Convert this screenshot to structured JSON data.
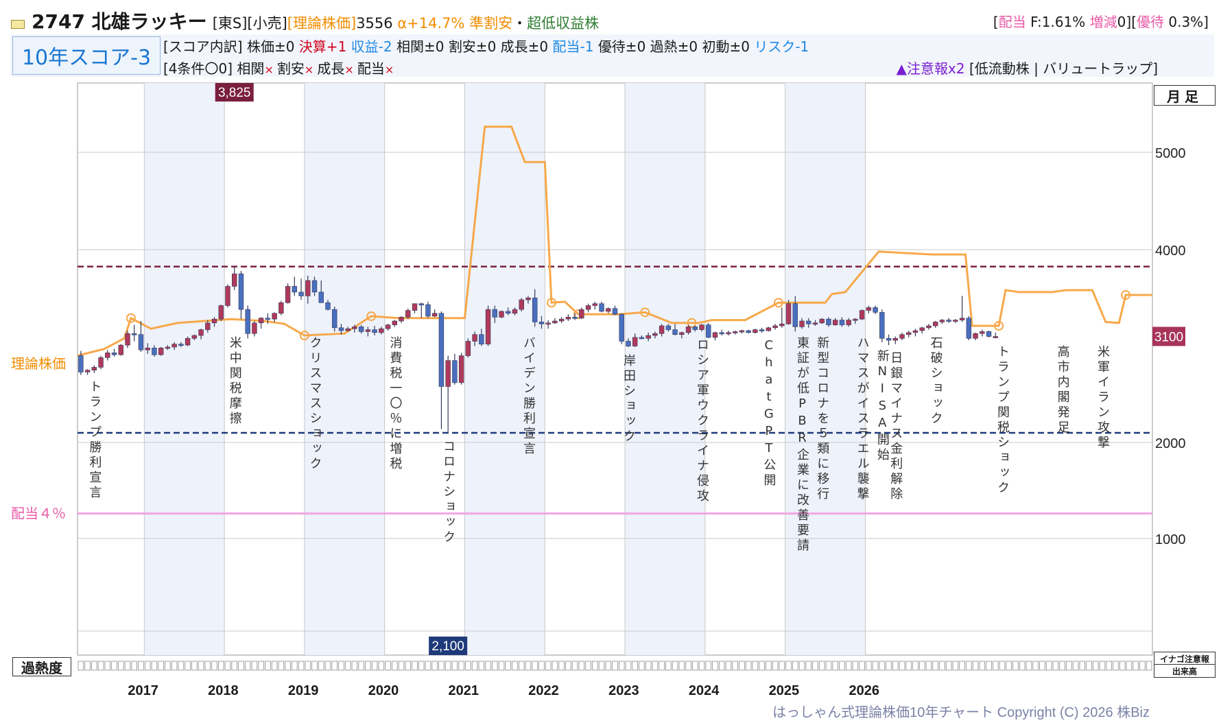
{
  "header": {
    "ticker_name": "2747 北雄ラッキー",
    "market": "[東S][小売]",
    "theory_label": "[理論株価]",
    "theory_value": "3556",
    "alpha": "α+14.7%",
    "rating1": "準割安",
    "sep": "・",
    "rating2": "超低収益株",
    "right_open": "[",
    "div_label": "配当",
    "div_text": " F:1.61% ",
    "incdec_label": "増減",
    "incdec_text": "0][",
    "yutai_label": "優待",
    "yutai_text": " 0.3%]"
  },
  "score": {
    "box": "10年スコア-3",
    "breakdown_label": "[スコア内訳]",
    "items": [
      {
        "label": "株価±0",
        "color": "#1a1a1a"
      },
      {
        "label": "決算+1",
        "color": "#d0021b"
      },
      {
        "label": "収益-2",
        "color": "#1e88e5"
      },
      {
        "label": "相関±0",
        "color": "#1a1a1a"
      },
      {
        "label": "割安±0",
        "color": "#1a1a1a"
      },
      {
        "label": "成長±0",
        "color": "#1a1a1a"
      },
      {
        "label": "配当-1",
        "color": "#1e88e5"
      },
      {
        "label": "優待±0",
        "color": "#1a1a1a"
      },
      {
        "label": "過熱±0",
        "color": "#1a1a1a"
      },
      {
        "label": "初動±0",
        "color": "#1a1a1a"
      },
      {
        "label": "リスク-1",
        "color": "#1e88e5"
      }
    ],
    "conditions_label": "[4条件〇0]",
    "conditions": [
      "相関",
      "割安",
      "成長",
      "配当"
    ],
    "cross": "×",
    "warning": "▲注意報x2",
    "warning_tags": "[低流動株 | バリュートラップ]"
  },
  "chart_data": {
    "type": "candlestick",
    "title": "",
    "y_axis_ticks": [
      1000,
      2000,
      4000,
      5000
    ],
    "ylim": [
      0,
      5950
    ],
    "x_years": [
      "2017",
      "2018",
      "2019",
      "2020",
      "2021",
      "2022",
      "2023",
      "2024",
      "2025",
      "2026"
    ],
    "high_marker": "3,825",
    "low_marker": "2,100",
    "high_line": 3825,
    "low_line": 2100,
    "dividend_4pct": 1260,
    "dividend_label": "配当４％",
    "theory_label": "理論株価",
    "current_price": "3100",
    "up_color": "#b03a5b",
    "down_color": "#4a6fbf",
    "theory_color": "#f7a84a",
    "monthly": [
      [
        2900,
        2950,
        2700,
        2730
      ],
      [
        2730,
        2760,
        2700,
        2750
      ],
      [
        2750,
        2800,
        2720,
        2780
      ],
      [
        2780,
        2900,
        2760,
        2880
      ],
      [
        2880,
        2960,
        2850,
        2930
      ],
      [
        2930,
        2970,
        2890,
        2910
      ],
      [
        2910,
        3020,
        2900,
        3010
      ],
      [
        3010,
        3160,
        2980,
        3130
      ],
      [
        3130,
        3220,
        3050,
        3120
      ],
      [
        3120,
        3260,
        2940,
        2960
      ],
      [
        2960,
        3030,
        2920,
        2980
      ],
      [
        2980,
        3010,
        2890,
        2910
      ],
      [
        2910,
        2990,
        2900,
        2980
      ],
      [
        2980,
        3010,
        2960,
        2990
      ],
      [
        2990,
        3040,
        2960,
        3020
      ],
      [
        3020,
        3040,
        2990,
        3010
      ],
      [
        3010,
        3100,
        3000,
        3080
      ],
      [
        3080,
        3120,
        3060,
        3110
      ],
      [
        3110,
        3180,
        3070,
        3170
      ],
      [
        3170,
        3270,
        3140,
        3240
      ],
      [
        3240,
        3300,
        3200,
        3280
      ],
      [
        3280,
        3430,
        3260,
        3420
      ],
      [
        3420,
        3640,
        3400,
        3620
      ],
      [
        3620,
        3825,
        3580,
        3750
      ],
      [
        3750,
        3780,
        3280,
        3380
      ],
      [
        3380,
        3420,
        3080,
        3130
      ],
      [
        3130,
        3260,
        3100,
        3240
      ],
      [
        3240,
        3300,
        3180,
        3290
      ],
      [
        3290,
        3340,
        3230,
        3280
      ],
      [
        3280,
        3350,
        3250,
        3340
      ],
      [
        3340,
        3470,
        3320,
        3450
      ],
      [
        3450,
        3650,
        3440,
        3620
      ],
      [
        3620,
        3720,
        3520,
        3560
      ],
      [
        3560,
        3700,
        3480,
        3520
      ],
      [
        3520,
        3730,
        3440,
        3680
      ],
      [
        3680,
        3720,
        3520,
        3560
      ],
      [
        3560,
        3680,
        3450,
        3450
      ],
      [
        3450,
        3480,
        3370,
        3380
      ],
      [
        3380,
        3410,
        3150,
        3190
      ],
      [
        3190,
        3230,
        3120,
        3160
      ],
      [
        3160,
        3200,
        3150,
        3180
      ],
      [
        3180,
        3220,
        3140,
        3200
      ],
      [
        3200,
        3220,
        3130,
        3150
      ],
      [
        3150,
        3200,
        3100,
        3170
      ],
      [
        3170,
        3210,
        3110,
        3140
      ],
      [
        3140,
        3200,
        3120,
        3180
      ],
      [
        3180,
        3230,
        3160,
        3220
      ],
      [
        3220,
        3270,
        3200,
        3260
      ],
      [
        3260,
        3310,
        3240,
        3300
      ],
      [
        3300,
        3390,
        3280,
        3370
      ],
      [
        3370,
        3440,
        3340,
        3440
      ],
      [
        3440,
        3450,
        3290,
        3430
      ],
      [
        3430,
        3460,
        3290,
        3310
      ],
      [
        3310,
        3380,
        3300,
        3340
      ],
      [
        3340,
        3360,
        2140,
        2580
      ],
      [
        2580,
        2900,
        2100,
        2850
      ],
      [
        2850,
        2920,
        2600,
        2620
      ],
      [
        2620,
        2930,
        2600,
        2900
      ],
      [
        2900,
        3080,
        2880,
        3050
      ],
      [
        3050,
        3150,
        3000,
        3120
      ],
      [
        3120,
        3180,
        3000,
        3020
      ],
      [
        3020,
        3420,
        3000,
        3380
      ],
      [
        3380,
        3420,
        3240,
        3300
      ],
      [
        3300,
        3370,
        3290,
        3360
      ],
      [
        3360,
        3400,
        3320,
        3340
      ],
      [
        3340,
        3400,
        3320,
        3380
      ],
      [
        3380,
        3500,
        3360,
        3480
      ],
      [
        3480,
        3520,
        3440,
        3500
      ],
      [
        3500,
        3590,
        3200,
        3250
      ],
      [
        3250,
        3310,
        3180,
        3230
      ],
      [
        3230,
        3270,
        3180,
        3240
      ],
      [
        3240,
        3290,
        3230,
        3260
      ],
      [
        3260,
        3300,
        3240,
        3280
      ],
      [
        3280,
        3330,
        3260,
        3300
      ],
      [
        3300,
        3340,
        3270,
        3290
      ],
      [
        3290,
        3400,
        3280,
        3380
      ],
      [
        3380,
        3440,
        3350,
        3420
      ],
      [
        3420,
        3460,
        3380,
        3440
      ],
      [
        3440,
        3460,
        3350,
        3360
      ],
      [
        3360,
        3400,
        3340,
        3390
      ],
      [
        3390,
        3420,
        3320,
        3330
      ],
      [
        3330,
        3340,
        3020,
        3050
      ],
      [
        3050,
        3080,
        2990,
        3000
      ],
      [
        3000,
        3130,
        2990,
        3090
      ],
      [
        3090,
        3110,
        3070,
        3080
      ],
      [
        3080,
        3140,
        3050,
        3110
      ],
      [
        3110,
        3150,
        3080,
        3130
      ],
      [
        3130,
        3230,
        3100,
        3210
      ],
      [
        3210,
        3230,
        3150,
        3170
      ],
      [
        3170,
        3230,
        3110,
        3120
      ],
      [
        3120,
        3150,
        3080,
        3140
      ],
      [
        3140,
        3220,
        3120,
        3200
      ],
      [
        3200,
        3210,
        3150,
        3170
      ],
      [
        3170,
        3230,
        3150,
        3220
      ],
      [
        3220,
        3240,
        3080,
        3090
      ],
      [
        3090,
        3150,
        3060,
        3140
      ],
      [
        3140,
        3170,
        3110,
        3130
      ],
      [
        3130,
        3160,
        3110,
        3140
      ],
      [
        3140,
        3160,
        3120,
        3150
      ],
      [
        3150,
        3170,
        3130,
        3160
      ],
      [
        3160,
        3170,
        3130,
        3140
      ],
      [
        3140,
        3180,
        3130,
        3170
      ],
      [
        3170,
        3190,
        3140,
        3160
      ],
      [
        3160,
        3200,
        3150,
        3190
      ],
      [
        3190,
        3230,
        3170,
        3210
      ],
      [
        3210,
        3400,
        3190,
        3230
      ],
      [
        3230,
        3480,
        3220,
        3440
      ],
      [
        3440,
        3520,
        3150,
        3200
      ],
      [
        3200,
        3290,
        3180,
        3260
      ],
      [
        3260,
        3290,
        3190,
        3230
      ],
      [
        3230,
        3270,
        3210,
        3240
      ],
      [
        3240,
        3290,
        3230,
        3280
      ],
      [
        3280,
        3300,
        3200,
        3220
      ],
      [
        3220,
        3290,
        3210,
        3270
      ],
      [
        3270,
        3300,
        3200,
        3220
      ],
      [
        3220,
        3290,
        3200,
        3270
      ],
      [
        3270,
        3290,
        3230,
        3280
      ],
      [
        3280,
        3380,
        3270,
        3370
      ],
      [
        3370,
        3420,
        3340,
        3400
      ],
      [
        3400,
        3420,
        3330,
        3350
      ],
      [
        3350,
        3380,
        3040,
        3080
      ],
      [
        3080,
        3120,
        3010,
        3060
      ],
      [
        3060,
        3100,
        3020,
        3080
      ],
      [
        3080,
        3140,
        3060,
        3120
      ],
      [
        3120,
        3160,
        3090,
        3140
      ],
      [
        3140,
        3180,
        3100,
        3160
      ],
      [
        3160,
        3200,
        3130,
        3190
      ],
      [
        3190,
        3230,
        3170,
        3210
      ],
      [
        3210,
        3260,
        3190,
        3250
      ],
      [
        3250,
        3280,
        3230,
        3270
      ],
      [
        3270,
        3290,
        3240,
        3260
      ],
      [
        3260,
        3280,
        3240,
        3270
      ],
      [
        3270,
        3520,
        3250,
        3290
      ],
      [
        3290,
        3310,
        3060,
        3080
      ],
      [
        3080,
        3140,
        3060,
        3130
      ],
      [
        3130,
        3170,
        3100,
        3150
      ],
      [
        3150,
        3160,
        3090,
        3100
      ],
      [
        3100,
        3140,
        3080,
        3100
      ]
    ],
    "theory_steps": [
      [
        0,
        2900
      ],
      [
        4,
        2970
      ],
      [
        7,
        3080
      ],
      [
        8,
        3290
      ],
      [
        11,
        3180
      ],
      [
        15,
        3240
      ],
      [
        23,
        3280
      ],
      [
        28,
        3260
      ],
      [
        31,
        3230
      ],
      [
        34,
        3110
      ],
      [
        40,
        3130
      ],
      [
        44,
        3310
      ],
      [
        48,
        3290
      ],
      [
        51,
        3290
      ],
      [
        54,
        3290
      ],
      [
        58,
        3290
      ],
      [
        61,
        5350
      ],
      [
        65,
        5350
      ],
      [
        67,
        4900
      ],
      [
        70,
        4900
      ],
      [
        71,
        3450
      ],
      [
        73,
        3460
      ],
      [
        75,
        3330
      ],
      [
        81,
        3330
      ],
      [
        85,
        3350
      ],
      [
        89,
        3240
      ],
      [
        93,
        3240
      ],
      [
        95,
        3270
      ],
      [
        100,
        3270
      ],
      [
        105,
        3450
      ],
      [
        112,
        3450
      ],
      [
        113,
        3540
      ],
      [
        115,
        3560
      ],
      [
        120,
        3980
      ],
      [
        128,
        3950
      ],
      [
        133,
        3950
      ],
      [
        134,
        3210
      ],
      [
        138,
        3210
      ],
      [
        139,
        3580
      ],
      [
        141,
        3560
      ],
      [
        146,
        3560
      ],
      [
        148,
        3580
      ],
      [
        152,
        3580
      ],
      [
        154,
        3250
      ],
      [
        156,
        3240
      ],
      [
        157,
        3530
      ],
      [
        160,
        3530
      ]
    ],
    "theory_markers": [
      8,
      34,
      44,
      71,
      75,
      85,
      92,
      105,
      138,
      157
    ],
    "events": [
      {
        "label": "トランプ勝利宣言",
        "m": 2
      },
      {
        "label": "米中関税摩擦",
        "m": 23
      },
      {
        "label": "クリスマスショック",
        "m": 35
      },
      {
        "label": "消費税一〇％に増税",
        "m": 47
      },
      {
        "label": "コロナショック",
        "m": 55
      },
      {
        "label": "バイデン勝利宣言",
        "m": 67
      },
      {
        "label": "岸田ショック",
        "m": 82
      },
      {
        "label": "ロシア軍ウクライナ侵攻",
        "m": 93
      },
      {
        "label": "ChatGPT公開",
        "m": 103
      },
      {
        "label": "東証が低PBR企業に改善要請",
        "m": 108
      },
      {
        "label": "新型コロナを５類に移行",
        "m": 111
      },
      {
        "label": "ハマスがイスラエル襲撃",
        "m": 117
      },
      {
        "label": "新NISA開始",
        "m": 120
      },
      {
        "label": "日銀マイナス金利解除",
        "m": 122
      },
      {
        "label": "石破ショック",
        "m": 128
      },
      {
        "label": "トランプ関税ショック",
        "m": 138
      },
      {
        "label": "高市内閣発足",
        "m": 147
      },
      {
        "label": "米軍イラン攻撃",
        "m": 153
      }
    ]
  },
  "labels": {
    "tsuki": "月足",
    "kanetsu": "過熱度",
    "inago": "イナゴ注意報",
    "dekidaka": "出来高",
    "copyright": "はっしゃん式理論株価10年チャート Copyright (C) 2026 株Biz"
  }
}
